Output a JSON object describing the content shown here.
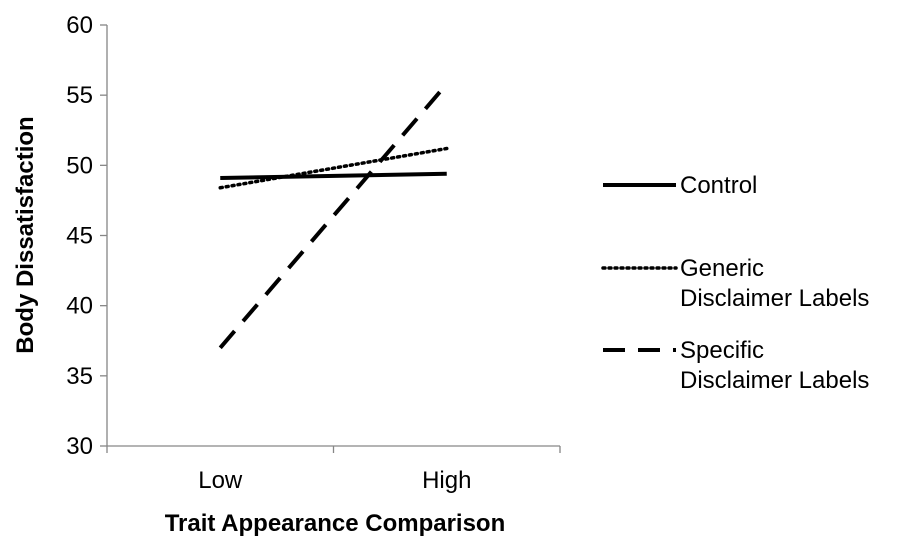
{
  "chart_data": {
    "type": "line",
    "xlabel": "Trait Appearance Comparison",
    "ylabel": "Body Dissatisfaction",
    "categories": [
      "Low",
      "High"
    ],
    "ylim": [
      30,
      60
    ],
    "yticks": [
      "30",
      "35",
      "40",
      "45",
      "50",
      "55",
      "60"
    ],
    "grid": false,
    "legend_position": "right",
    "series": [
      {
        "name": "Control",
        "values": [
          49.1,
          49.4
        ],
        "line_style": "solid",
        "color": "#000000"
      },
      {
        "name": "Generic Disclaimer Labels",
        "values": [
          48.4,
          51.2
        ],
        "line_style": "dotted",
        "color": "#000000"
      },
      {
        "name": "Specific Disclaimer Labels",
        "values": [
          37.0,
          55.8
        ],
        "line_style": "dashed",
        "color": "#000000"
      }
    ]
  }
}
